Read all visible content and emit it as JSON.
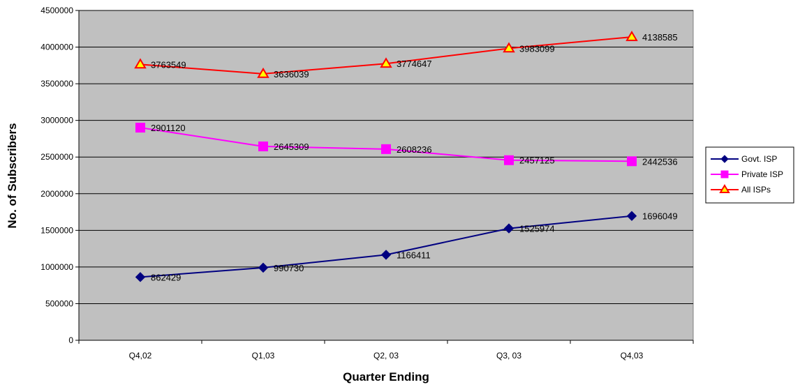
{
  "chart_data": {
    "type": "line",
    "title": "",
    "xlabel": "Quarter Ending",
    "ylabel": "No. of Subscribers",
    "categories": [
      "Q4,02",
      "Q1,03",
      "Q2, 03",
      "Q3, 03",
      "Q4,03"
    ],
    "ylim": [
      0,
      4500000
    ],
    "yticks": [
      0,
      500000,
      1000000,
      1500000,
      2000000,
      2500000,
      3000000,
      3500000,
      4000000,
      4500000
    ],
    "grid": true,
    "plot_background": "#c0c0c0",
    "legend_position": "right",
    "series": [
      {
        "name": "Govt. ISP",
        "values": [
          862429,
          990730,
          1166411,
          1525974,
          1696049
        ],
        "color": "#000080",
        "marker": "diamond",
        "marker_fill": "#000080",
        "labels": [
          "862429",
          "990730",
          "1166411",
          "1525974",
          "1696049"
        ]
      },
      {
        "name": "Private ISP",
        "values": [
          2901120,
          2645309,
          2608236,
          2457125,
          2442536
        ],
        "color": "#ff00ff",
        "marker": "square",
        "marker_fill": "#ff00ff",
        "labels": [
          "2901120",
          "2645309",
          "2608236",
          "2457125",
          "2442536"
        ]
      },
      {
        "name": "All ISPs",
        "values": [
          3763549,
          3636039,
          3774647,
          3983099,
          4138585
        ],
        "color": "#ff0000",
        "marker": "triangle",
        "marker_fill": "#ffff00",
        "labels": [
          "3763549",
          "3636039",
          "3774647",
          "3983099",
          "4138585"
        ]
      }
    ]
  }
}
